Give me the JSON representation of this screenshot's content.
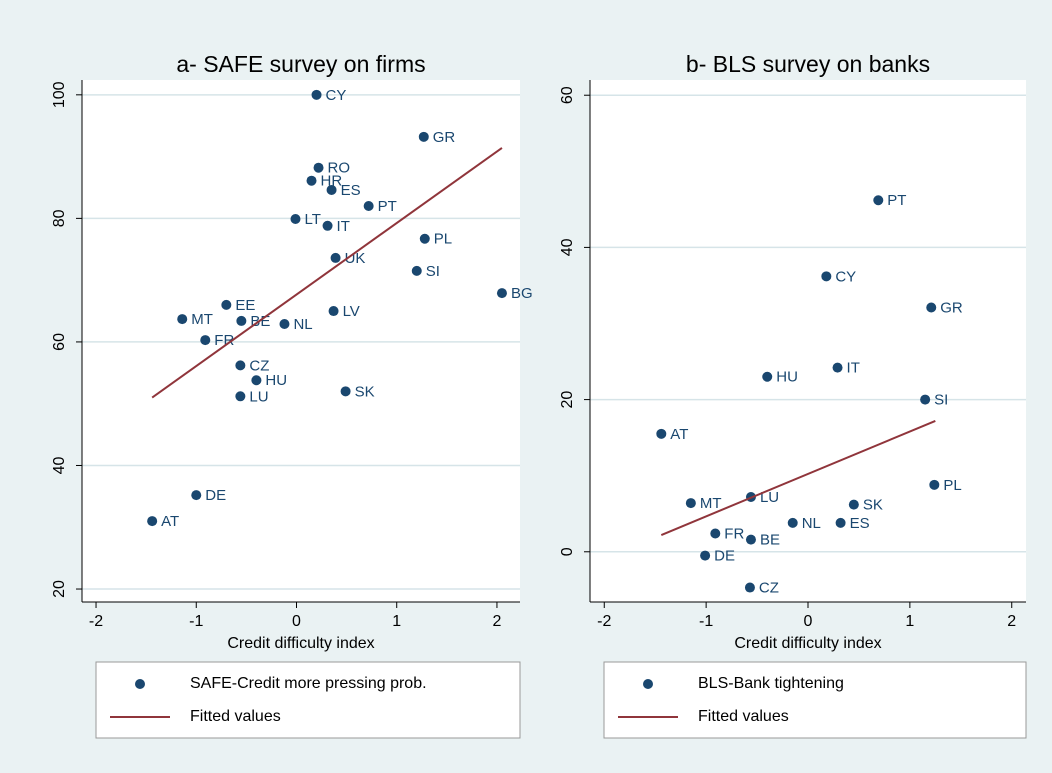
{
  "chart_data": [
    {
      "type": "scatter",
      "title": "a- SAFE survey on firms",
      "xlabel": "Credit difficulty index",
      "xlim": [
        -2.14,
        2.23
      ],
      "ylim": [
        17.9,
        102.4
      ],
      "xticks": [
        -2,
        -1,
        0,
        1,
        2
      ],
      "yticks": [
        20,
        40,
        60,
        80,
        100
      ],
      "grid": true,
      "series": [
        {
          "name": "SAFE-Credit more pressing prob.",
          "color": "#1a476f",
          "mode": "markers",
          "labels": [
            "CY",
            "GR",
            "RO",
            "HR",
            "ES",
            "PT",
            "LT",
            "IT",
            "PL",
            "UK",
            "SI",
            "BG",
            "EE",
            "MT",
            "BE",
            "NL",
            "LV",
            "FR",
            "CZ",
            "HU",
            "LU",
            "SK",
            "DE",
            "AT"
          ],
          "x": [
            0.2,
            1.27,
            0.22,
            0.15,
            0.35,
            0.72,
            -0.01,
            0.31,
            1.28,
            0.39,
            1.2,
            2.05,
            -0.7,
            -1.14,
            -0.55,
            -0.12,
            0.37,
            -0.91,
            -0.56,
            -0.4,
            -0.56,
            0.49,
            -1.0,
            -1.44
          ],
          "values": [
            100,
            93.2,
            88.2,
            86.1,
            84.6,
            82.0,
            79.9,
            78.8,
            76.7,
            73.6,
            71.5,
            67.9,
            66.0,
            63.7,
            63.4,
            62.9,
            65.0,
            60.3,
            56.2,
            53.8,
            51.2,
            52.0,
            35.2,
            31.0
          ]
        },
        {
          "name": "Fitted values",
          "color": "#90353b",
          "mode": "line",
          "x": [
            -1.44,
            2.05
          ],
          "values": [
            51.0,
            91.4
          ]
        }
      ]
    },
    {
      "type": "scatter",
      "title": "b- BLS survey on banks",
      "xlabel": "Credit difficulty index",
      "xlim": [
        -2.14,
        2.14
      ],
      "ylim": [
        -6.6,
        62.0
      ],
      "xticks": [
        -2,
        -1,
        0,
        1,
        2
      ],
      "yticks": [
        0,
        20,
        40,
        60
      ],
      "grid": true,
      "series": [
        {
          "name": "BLS-Bank tightening",
          "color": "#1a476f",
          "mode": "markers",
          "labels": [
            "PT",
            "CY",
            "GR",
            "HU",
            "IT",
            "SI",
            "AT",
            "PL",
            "MT",
            "LU",
            "SK",
            "NL",
            "ES",
            "FR",
            "BE",
            "DE",
            "CZ"
          ],
          "x": [
            0.69,
            0.18,
            1.21,
            -0.4,
            0.29,
            1.15,
            -1.44,
            1.24,
            -1.15,
            -0.56,
            0.45,
            -0.15,
            0.32,
            -0.91,
            -0.56,
            -1.01,
            -0.57
          ],
          "values": [
            46.2,
            36.2,
            32.1,
            23.0,
            24.2,
            20.0,
            15.5,
            8.8,
            6.4,
            7.2,
            6.2,
            3.8,
            3.8,
            2.4,
            1.6,
            -0.5,
            -4.7
          ]
        },
        {
          "name": "Fitted values",
          "color": "#90353b",
          "mode": "line",
          "x": [
            -1.44,
            1.25
          ],
          "values": [
            2.2,
            17.2
          ]
        }
      ]
    }
  ]
}
